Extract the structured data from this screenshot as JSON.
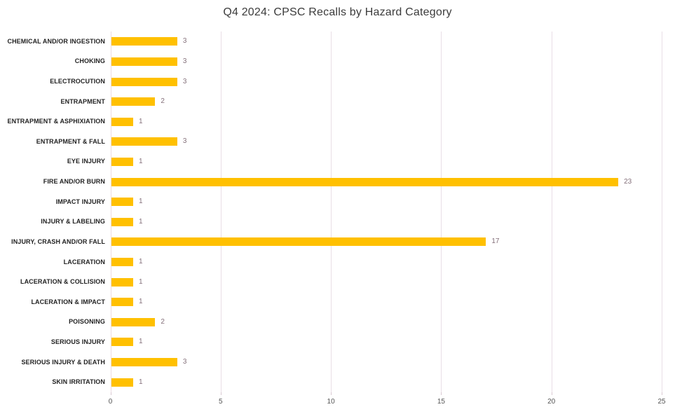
{
  "chart_data": {
    "type": "bar",
    "orientation": "horizontal",
    "title": "Q4 2024: CPSC Recalls by Hazard Category",
    "categories": [
      "CHEMICAL AND/OR INGESTION",
      "CHOKING",
      "ELECTROCUTION",
      "ENTRAPMENT",
      "ENTRAPMENT & ASPHIXIATION",
      "ENTRAPMENT & FALL",
      "EYE INJURY",
      "FIRE AND/OR BURN",
      "IMPACT INJURY",
      "INJURY & LABELING",
      "INJURY, CRASH AND/OR FALL",
      "LACERATION",
      "LACERATION & COLLISION",
      "LACERATION & IMPACT",
      "POISONING",
      "SERIOUS INJURY",
      "SERIOUS INJURY & DEATH",
      "SKIN IRRITATION"
    ],
    "values": [
      3,
      3,
      3,
      2,
      1,
      3,
      1,
      23,
      1,
      1,
      17,
      1,
      1,
      1,
      2,
      1,
      3,
      1
    ],
    "data_labels": [
      "3",
      "3",
      "3",
      "2",
      "1",
      "3",
      "1",
      "23",
      "1",
      "1",
      "17",
      "1",
      "1",
      "1",
      "2",
      "1",
      "3",
      "1"
    ],
    "xlabel": "",
    "ylabel": "",
    "xlim": [
      0,
      25
    ],
    "x_ticks": [
      "0",
      "5",
      "10",
      "15",
      "20",
      "25"
    ],
    "grid": "vertical-gridlines-on",
    "legend": "none",
    "colors": {
      "bar": "#FFC000",
      "gridline": "#E9DEE6",
      "axis_line": "#EBDCE2",
      "tick_mark": "#D9C8D1",
      "title_text": "#3B3B3B",
      "category_text": "#232323",
      "value_label_text": "#84707A",
      "tick_label_text": "#555555",
      "background": "#FFFFFF"
    }
  }
}
